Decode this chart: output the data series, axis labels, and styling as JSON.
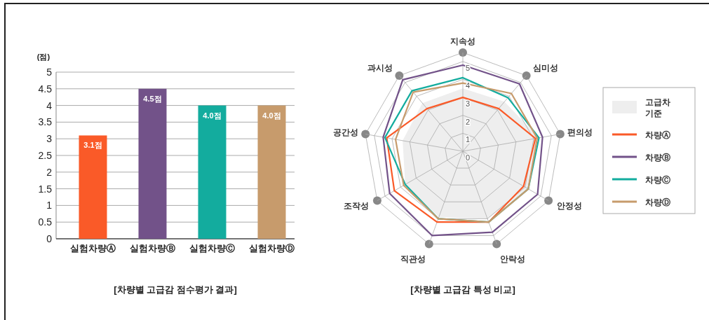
{
  "chart_data": [
    {
      "type": "bar",
      "title": "[차량별 고급감 점수평가 결과]",
      "ylabel": "(점)",
      "categories": [
        "실험차량Ⓐ",
        "실험차량Ⓑ",
        "실험차량Ⓒ",
        "실험차량Ⓓ"
      ],
      "values": [
        3.1,
        4.5,
        4.0,
        4.0
      ],
      "colors": [
        "#fa5a28",
        "#725289",
        "#13ac9e",
        "#c79b6c"
      ],
      "value_labels": [
        "3.1점",
        "4.5점",
        "4.0점",
        "4.0점"
      ],
      "ylim": [
        0,
        5
      ],
      "yticks": [
        0,
        0.5,
        1,
        1.5,
        2,
        2.5,
        3,
        3.5,
        4,
        4.5,
        5
      ],
      "grid": "y"
    },
    {
      "type": "radar",
      "title": "[차량별 고급감 특성 비교]",
      "categories": [
        "지속성",
        "심미성",
        "편의성",
        "안정성",
        "안락성",
        "직관성",
        "조작성",
        "공간성",
        "과시성"
      ],
      "series": [
        {
          "name": "고급차 기준",
          "type": "area",
          "color": "#eeeeee",
          "values": [
            3.5,
            3.6,
            4.3,
            4.2,
            4.0,
            3.9,
            3.7,
            3.4,
            3.5
          ]
        },
        {
          "name": "차량Ⓐ",
          "color": "#fa5a28",
          "values": [
            3.0,
            3.1,
            4.1,
            3.9,
            4.2,
            4.2,
            4.4,
            4.3,
            3.1
          ]
        },
        {
          "name": "차량Ⓑ",
          "color": "#725289",
          "values": [
            4.8,
            4.9,
            4.5,
            4.8,
            4.8,
            5.0,
            4.7,
            4.5,
            5.2
          ]
        },
        {
          "name": "차량Ⓒ",
          "color": "#13ac9e",
          "values": [
            4.1,
            3.9,
            4.3,
            4.2,
            4.2,
            4.0,
            3.7,
            4.4,
            4.4
          ]
        },
        {
          "name": "차량Ⓓ",
          "color": "#c79b6c",
          "values": [
            3.8,
            4.2,
            4.2,
            4.2,
            4.2,
            4.0,
            3.8,
            3.8,
            4.3
          ]
        }
      ],
      "ylim": [
        0,
        5.5
      ],
      "yticks": [
        0,
        1,
        2,
        3,
        4,
        5
      ],
      "legend": "right"
    }
  ]
}
